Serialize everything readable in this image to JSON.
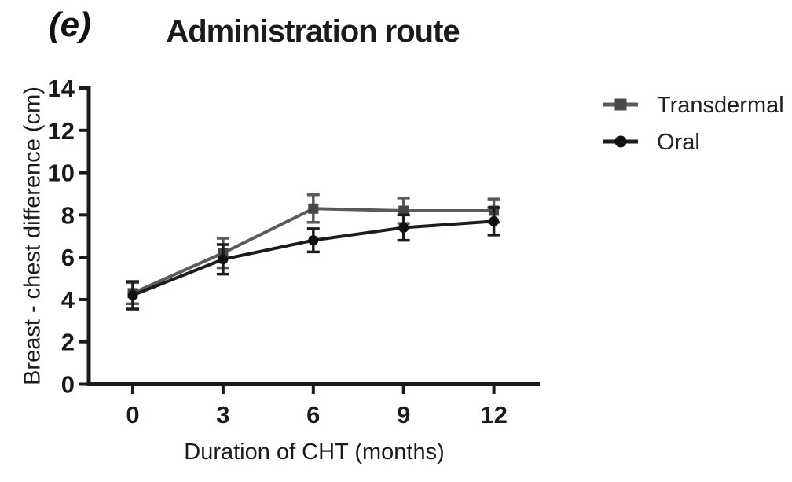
{
  "panel_label": "(e)",
  "colors": {
    "axis": "#1a1a1a",
    "transdermal": "#5a5a5a",
    "oral": "#1c1c1c",
    "text": "#1b1b1b"
  },
  "chart_data": {
    "type": "line",
    "title": "Administration route",
    "xlabel": "Duration of CHT (months)",
    "ylabel": "Breast - chest difference (cm)",
    "x": [
      0,
      3,
      6,
      9,
      12
    ],
    "xticks": [
      0,
      3,
      6,
      9,
      12
    ],
    "ylim": [
      0,
      14
    ],
    "ytick_step": 2,
    "grid": false,
    "error_bars": true,
    "legend_position": "right",
    "axis_color": "#1a1a1a",
    "series": [
      {
        "name": "Transdermal",
        "marker": "square",
        "line_color": "#5a5a5a",
        "marker_color": "#484848",
        "values": [
          4.3,
          6.2,
          8.3,
          8.2,
          8.2
        ],
        "errors": [
          0.5,
          0.7,
          0.65,
          0.6,
          0.55
        ]
      },
      {
        "name": "Oral",
        "marker": "circle",
        "line_color": "#1c1c1c",
        "marker_color": "#111111",
        "values": [
          4.2,
          5.9,
          6.8,
          7.4,
          7.7
        ],
        "errors": [
          0.65,
          0.7,
          0.55,
          0.6,
          0.65
        ]
      }
    ]
  }
}
